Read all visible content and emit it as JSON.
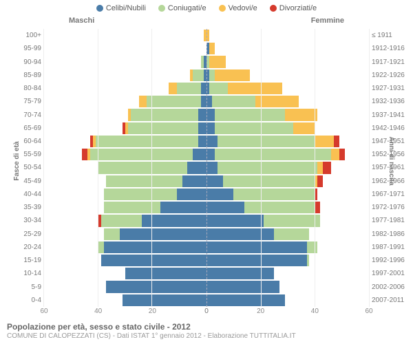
{
  "chart": {
    "type": "population-pyramid",
    "legend": [
      {
        "label": "Celibi/Nubili",
        "color": "#4a7ca8"
      },
      {
        "label": "Coniugati/e",
        "color": "#b5d79a"
      },
      {
        "label": "Vedovi/e",
        "color": "#f9c152"
      },
      {
        "label": "Divorziati/e",
        "color": "#d53a2c"
      }
    ],
    "side_titles": {
      "male": "Maschi",
      "female": "Femmine"
    },
    "y_title_left": "Fasce di età",
    "y_title_right": "Anni di nascita",
    "xmax": 60,
    "x_ticks": [
      0,
      20,
      40,
      60
    ],
    "age_bands": [
      {
        "age": "100+",
        "birth": "≤ 1911",
        "m": [
          0,
          0,
          1,
          0
        ],
        "f": [
          0,
          0,
          1,
          0
        ]
      },
      {
        "age": "95-99",
        "birth": "1912-1916",
        "m": [
          0,
          0,
          0,
          0
        ],
        "f": [
          1,
          0,
          2,
          0
        ]
      },
      {
        "age": "90-94",
        "birth": "1917-1921",
        "m": [
          1,
          1,
          0,
          0
        ],
        "f": [
          0,
          1,
          6,
          0
        ]
      },
      {
        "age": "85-89",
        "birth": "1922-1926",
        "m": [
          1,
          4,
          1,
          0
        ],
        "f": [
          1,
          2,
          13,
          0
        ]
      },
      {
        "age": "80-84",
        "birth": "1927-1931",
        "m": [
          2,
          9,
          3,
          0
        ],
        "f": [
          1,
          7,
          20,
          0
        ]
      },
      {
        "age": "75-79",
        "birth": "1932-1936",
        "m": [
          2,
          20,
          3,
          0
        ],
        "f": [
          2,
          16,
          16,
          0
        ]
      },
      {
        "age": "70-74",
        "birth": "1937-1941",
        "m": [
          3,
          25,
          1,
          0
        ],
        "f": [
          3,
          26,
          12,
          0
        ]
      },
      {
        "age": "65-69",
        "birth": "1942-1946",
        "m": [
          3,
          26,
          1,
          1
        ],
        "f": [
          3,
          29,
          8,
          0
        ]
      },
      {
        "age": "60-64",
        "birth": "1947-1951",
        "m": [
          3,
          38,
          1,
          1
        ],
        "f": [
          4,
          36,
          7,
          2
        ]
      },
      {
        "age": "55-59",
        "birth": "1952-1956",
        "m": [
          5,
          38,
          1,
          2
        ],
        "f": [
          3,
          43,
          3,
          2
        ]
      },
      {
        "age": "50-54",
        "birth": "1957-1961",
        "m": [
          7,
          33,
          0,
          0
        ],
        "f": [
          4,
          37,
          2,
          3
        ]
      },
      {
        "age": "45-49",
        "birth": "1962-1966",
        "m": [
          9,
          28,
          0,
          0
        ],
        "f": [
          6,
          34,
          1,
          2
        ]
      },
      {
        "age": "40-44",
        "birth": "1967-1971",
        "m": [
          11,
          27,
          0,
          0
        ],
        "f": [
          10,
          30,
          0,
          1
        ]
      },
      {
        "age": "35-39",
        "birth": "1972-1976",
        "m": [
          17,
          21,
          0,
          0
        ],
        "f": [
          14,
          26,
          0,
          2
        ]
      },
      {
        "age": "30-34",
        "birth": "1977-1981",
        "m": [
          24,
          15,
          0,
          1
        ],
        "f": [
          21,
          21,
          0,
          0
        ]
      },
      {
        "age": "25-29",
        "birth": "1982-1986",
        "m": [
          32,
          6,
          0,
          0
        ],
        "f": [
          25,
          13,
          0,
          0
        ]
      },
      {
        "age": "20-24",
        "birth": "1987-1991",
        "m": [
          38,
          2,
          0,
          0
        ],
        "f": [
          37,
          4,
          0,
          0
        ]
      },
      {
        "age": "15-19",
        "birth": "1992-1996",
        "m": [
          39,
          0,
          0,
          0
        ],
        "f": [
          37,
          1,
          0,
          0
        ]
      },
      {
        "age": "10-14",
        "birth": "1997-2001",
        "m": [
          30,
          0,
          0,
          0
        ],
        "f": [
          25,
          0,
          0,
          0
        ]
      },
      {
        "age": "5-9",
        "birth": "2002-2006",
        "m": [
          37,
          0,
          0,
          0
        ],
        "f": [
          27,
          0,
          0,
          0
        ]
      },
      {
        "age": "0-4",
        "birth": "2007-2011",
        "m": [
          31,
          0,
          0,
          0
        ],
        "f": [
          29,
          0,
          0,
          0
        ]
      }
    ],
    "background_color": "#ffffff",
    "grid_color": "#eeeeee",
    "axis_text_color": "#888888"
  },
  "footer": {
    "title": "Popolazione per età, sesso e stato civile - 2012",
    "subtitle": "COMUNE DI CALOPEZZATI (CS) - Dati ISTAT 1° gennaio 2012 - Elaborazione TUTTITALIA.IT"
  }
}
